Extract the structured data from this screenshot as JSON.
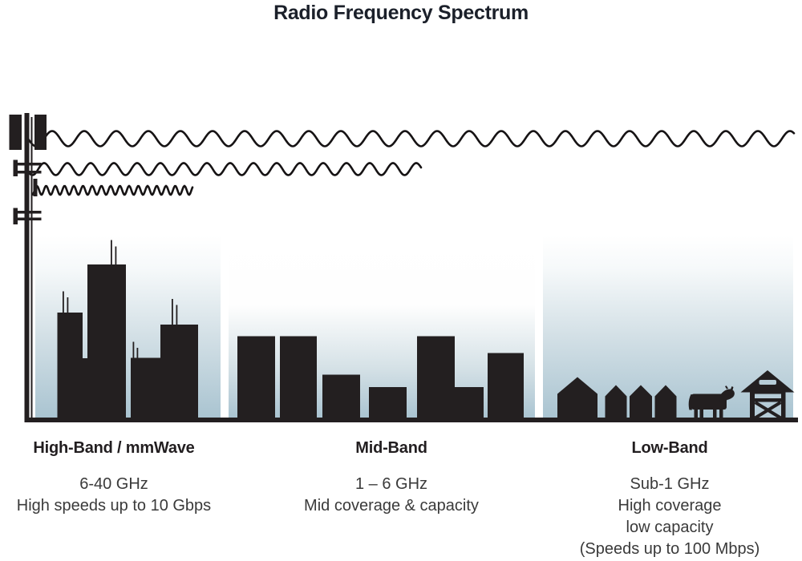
{
  "title": "Radio Frequency Spectrum",
  "bands": [
    {
      "id": "high-band",
      "heading": "High-Band / mmWave",
      "lines": [
        "6-40 GHz",
        "High speeds up to 10 Gbps"
      ],
      "scene": "dense city skyline with rooftop antennas",
      "wave": {
        "name": "high-band-wave",
        "wavelength": "short",
        "reach": "shortest"
      }
    },
    {
      "id": "mid-band",
      "heading": "Mid-Band",
      "lines": [
        "1 – 6 GHz",
        "Mid coverage & capacity"
      ],
      "scene": "mid-rise suburban buildings",
      "wave": {
        "name": "mid-band-wave",
        "wavelength": "medium",
        "reach": "medium"
      }
    },
    {
      "id": "low-band",
      "heading": "Low-Band",
      "lines": [
        "Sub-1 GHz",
        "High coverage",
        "low capacity",
        "(Speeds up to 100 Mbps)"
      ],
      "scene": "rural houses, cow and barn",
      "wave": {
        "name": "low-band-wave",
        "wavelength": "long",
        "reach": "longest"
      }
    }
  ],
  "icons": {
    "tower": "cell-tower-icon",
    "city": "city-skyline",
    "suburb": "suburban-buildings",
    "houses": "rural-houses",
    "cow": "cow-icon",
    "barn": "barn-icon",
    "ground": "ground-line"
  },
  "colors": {
    "silhouette": "#231f20",
    "title_text": "#1b202a",
    "heading_text": "#221e20",
    "body_text": "#3a3a3a",
    "sky_gradient_top": "#ffffff",
    "sky_gradient_bottom": "#aac4d1",
    "barn_door": "#b6ccd7"
  }
}
